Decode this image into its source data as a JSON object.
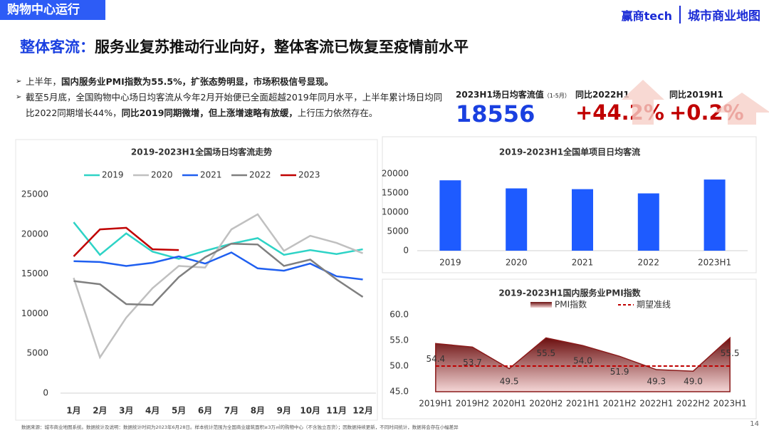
{
  "header": {
    "tag": "购物中心运行",
    "logo_1": "赢商tech",
    "logo_2": "城市商业地图"
  },
  "headline": {
    "keyword": "整体客流：",
    "text": "服务业复苏推动行业向好，整体客流已恢复至疫情前水平"
  },
  "bullets": [
    [
      {
        "text": "上半年，",
        "bold": false
      },
      {
        "text": "国内服务业PMI指数为55.5%，扩张态势明显，市场积极信号显现。",
        "bold": true
      }
    ],
    [
      {
        "text": "截至5月底，全国购物中心场日均客流从今年2月开始便已全面超越2019年同月水平，上半年累计场日均同比2022同期增长44%，",
        "bold": false
      },
      {
        "text": "同比2019同期微增，但上涨增速略有放缓，",
        "bold": true
      },
      {
        "text": "上行压力依然存在。",
        "bold": false
      }
    ]
  ],
  "kpis": [
    {
      "label": "2023H1场日均客流值",
      "note": "（1-5月）",
      "value": "18556",
      "color": "#1a40e0"
    },
    {
      "label": "同比2022H1",
      "value": "+44.2%",
      "color": "#c00000"
    },
    {
      "label": "同比2019H1",
      "value": "+0.2%",
      "color": "#c00000"
    }
  ],
  "chart_data": [
    {
      "type": "line",
      "title": "2019-2023H1全国场日均客流走势",
      "categories": [
        "1月",
        "2月",
        "3月",
        "4月",
        "5月",
        "6月",
        "7月",
        "8月",
        "9月",
        "10月",
        "11月",
        "12月"
      ],
      "series": [
        {
          "name": "2019",
          "color": "#2ed3c6",
          "values": [
            21500,
            17400,
            20100,
            17800,
            16900,
            17900,
            18800,
            19500,
            17400,
            18000,
            17500,
            18100
          ]
        },
        {
          "name": "2020",
          "color": "#c0c0c0",
          "values": [
            14500,
            4500,
            9500,
            13200,
            16000,
            15800,
            20600,
            22500,
            17900,
            19800,
            18900,
            17600
          ]
        },
        {
          "name": "2021",
          "color": "#1f5ff0",
          "values": [
            16600,
            16500,
            16000,
            16400,
            17200,
            16300,
            17700,
            15700,
            15400,
            16300,
            14700,
            14300
          ]
        },
        {
          "name": "2022",
          "color": "#7f7f7f",
          "values": [
            14100,
            13700,
            11200,
            11100,
            14600,
            17100,
            18800,
            18700,
            16000,
            16800,
            14300,
            12100
          ]
        },
        {
          "name": "2023",
          "color": "#c00000",
          "values": [
            17200,
            20600,
            20800,
            18100,
            18000,
            null,
            null,
            null,
            null,
            null,
            null,
            null
          ]
        }
      ],
      "ylim": [
        0,
        25000
      ],
      "yticks": [
        0,
        5000,
        10000,
        15000,
        20000,
        25000
      ]
    },
    {
      "type": "bar",
      "title": "2019-2023H1全国单项目日均客流",
      "categories": [
        "2019",
        "2020",
        "2021",
        "2022",
        "2023H1"
      ],
      "values": [
        18300,
        16200,
        16000,
        14900,
        18500
      ],
      "color": "#1e5bff",
      "ylim": [
        0,
        20000
      ],
      "yticks": [
        0,
        5000,
        10000,
        15000,
        20000
      ]
    },
    {
      "type": "area",
      "title": "2019-2023H1国内服务业PMI指数",
      "categories": [
        "2019H1",
        "2019H2",
        "2020H1",
        "2020H2",
        "2021H1",
        "2021H2",
        "2022H1",
        "2022H2",
        "2023H1"
      ],
      "series": [
        {
          "name": "PMI指数",
          "color": "#8a1a1a",
          "values": [
            54.4,
            53.7,
            49.5,
            55.5,
            54.0,
            51.9,
            49.3,
            49.0,
            55.5
          ],
          "value_labels": [
            "54.4",
            "53.7",
            "49.5",
            "55.5",
            "54.0",
            "51.9",
            "49.3",
            "49.0",
            "55.5"
          ]
        }
      ],
      "reference_line": {
        "name": "期望准线",
        "value": 50,
        "color": "#c00000"
      },
      "ylim": [
        45,
        60
      ],
      "yticks": [
        {
          "value": 45,
          "label": "45.0"
        },
        {
          "value": 50,
          "label": "50.0"
        },
        {
          "value": 55,
          "label": "55.0"
        },
        {
          "value": 60,
          "label": "60.0"
        }
      ]
    }
  ],
  "footer": "数据来源：城市商业地图系统。数据统计及说明：数据统计时间为2023年6月28日。样本统计范围为全国商业建筑面积≥3万㎡的购物中心（不含独立百货）；因数据持续更新，不同时间统计，数据将会存在小幅差异",
  "page_number": "14"
}
